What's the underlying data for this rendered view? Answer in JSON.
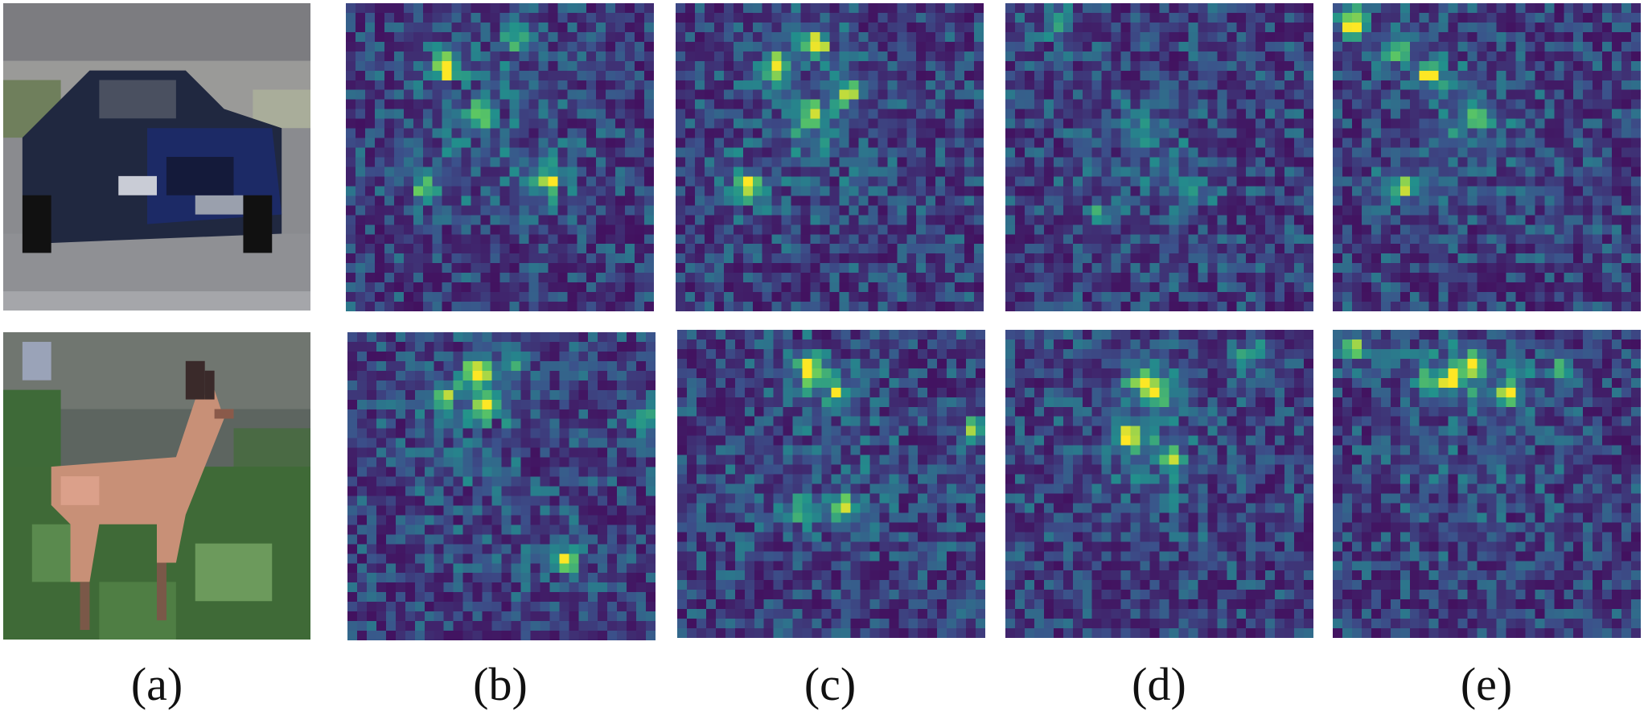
{
  "figure": {
    "labels": [
      "(a)",
      "(b)",
      "(c)",
      "(d)",
      "(e)"
    ],
    "rows": [
      {
        "subject": "car",
        "photo_icon": "car-photo",
        "hotspots": [
          [
            [
              0.32,
              0.2,
              1.0
            ],
            [
              0.45,
              0.36,
              0.7
            ],
            [
              0.66,
              0.58,
              0.75
            ],
            [
              0.25,
              0.6,
              0.6
            ],
            [
              0.55,
              0.1,
              0.5
            ]
          ],
          [
            [
              0.32,
              0.2,
              1.0
            ],
            [
              0.46,
              0.12,
              0.85
            ],
            [
              0.23,
              0.6,
              0.95
            ],
            [
              0.44,
              0.36,
              0.8
            ],
            [
              0.56,
              0.28,
              0.6
            ]
          ],
          [
            [
              0.15,
              0.05,
              0.5
            ],
            [
              0.6,
              0.62,
              0.55
            ],
            [
              0.45,
              0.4,
              0.4
            ],
            [
              0.3,
              0.7,
              0.4
            ]
          ],
          [
            [
              0.05,
              0.05,
              1.0
            ],
            [
              0.32,
              0.22,
              0.95
            ],
            [
              0.23,
              0.6,
              0.8
            ],
            [
              0.45,
              0.36,
              0.6
            ],
            [
              0.2,
              0.13,
              0.6
            ]
          ]
        ]
      },
      {
        "subject": "deer",
        "photo_icon": "deer-photo",
        "hotspots": [
          [
            [
              0.42,
              0.12,
              1.0
            ],
            [
              0.45,
              0.23,
              0.95
            ],
            [
              0.72,
              0.75,
              0.75
            ],
            [
              0.98,
              0.28,
              0.6
            ],
            [
              0.3,
              0.2,
              0.6
            ],
            [
              0.55,
              0.08,
              0.5
            ]
          ],
          [
            [
              0.42,
              0.12,
              0.95
            ],
            [
              0.55,
              0.58,
              0.75
            ],
            [
              0.52,
              0.2,
              0.65
            ],
            [
              0.98,
              0.32,
              0.5
            ],
            [
              0.4,
              0.58,
              0.5
            ]
          ],
          [
            [
              0.4,
              0.35,
              1.0
            ],
            [
              0.45,
              0.15,
              0.9
            ],
            [
              0.5,
              0.2,
              0.7
            ],
            [
              0.8,
              0.07,
              0.55
            ],
            [
              0.55,
              0.42,
              0.5
            ]
          ],
          [
            [
              0.45,
              0.1,
              1.0
            ],
            [
              0.38,
              0.15,
              0.9
            ],
            [
              0.58,
              0.2,
              0.75
            ],
            [
              0.05,
              0.05,
              0.7
            ],
            [
              0.3,
              0.15,
              0.6
            ],
            [
              0.75,
              0.12,
              0.5
            ]
          ]
        ]
      }
    ],
    "colormap": [
      "#440154",
      "#3b528b",
      "#21918c",
      "#5ec962",
      "#fde725"
    ]
  }
}
